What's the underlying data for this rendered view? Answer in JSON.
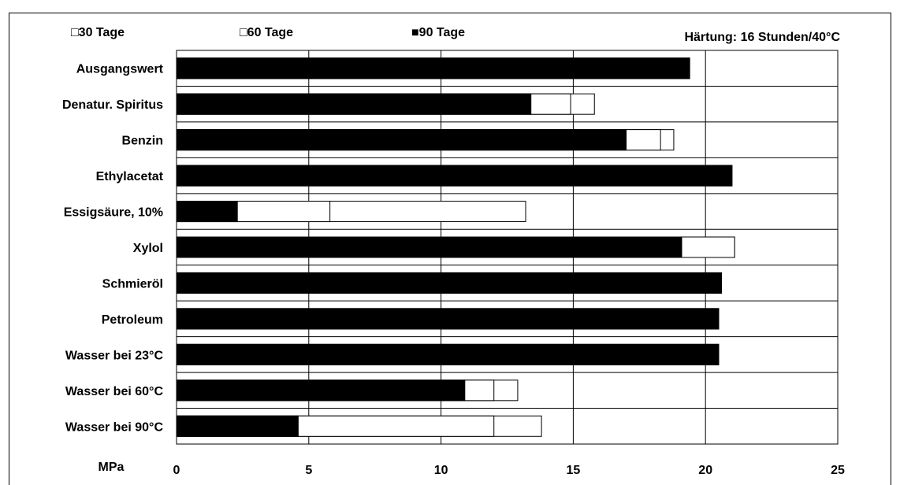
{
  "chart_data": {
    "type": "bar",
    "orientation": "horizontal",
    "subtitle": "Härtung: 16 Stunden/40°C",
    "xlabel": "MPa",
    "xlim": [
      0,
      25
    ],
    "xticks": [
      "0",
      "5",
      "10",
      "15",
      "20",
      "25"
    ],
    "grid": true,
    "legend_position": "top",
    "categories": [
      "Ausgangswert",
      "Denatur. Spiritus",
      "Benzin",
      "Ethylacetat",
      "Essigsäure, 10%",
      "Xylol",
      "Schmieröl",
      "Petroleum",
      "Wasser bei 23°C",
      "Wasser bei 60°C",
      "Wasser bei 90°C"
    ],
    "series": [
      {
        "name": "30 Tage",
        "color": "#ffffff",
        "legend_marker": "□",
        "values": [
          19.4,
          15.8,
          18.8,
          21.0,
          13.2,
          21.1,
          20.6,
          20.5,
          20.5,
          12.9,
          13.8
        ]
      },
      {
        "name": "60 Tage",
        "color": "#ffffff",
        "legend_marker": "□",
        "values": [
          19.4,
          14.9,
          18.3,
          21.0,
          5.8,
          21.1,
          20.6,
          20.5,
          20.5,
          12.0,
          12.0
        ]
      },
      {
        "name": "90 Tage",
        "color": "#000000",
        "legend_marker": "■",
        "values": [
          19.4,
          13.4,
          17.0,
          21.0,
          2.3,
          19.1,
          20.6,
          20.5,
          20.5,
          10.9,
          4.6
        ]
      }
    ]
  }
}
